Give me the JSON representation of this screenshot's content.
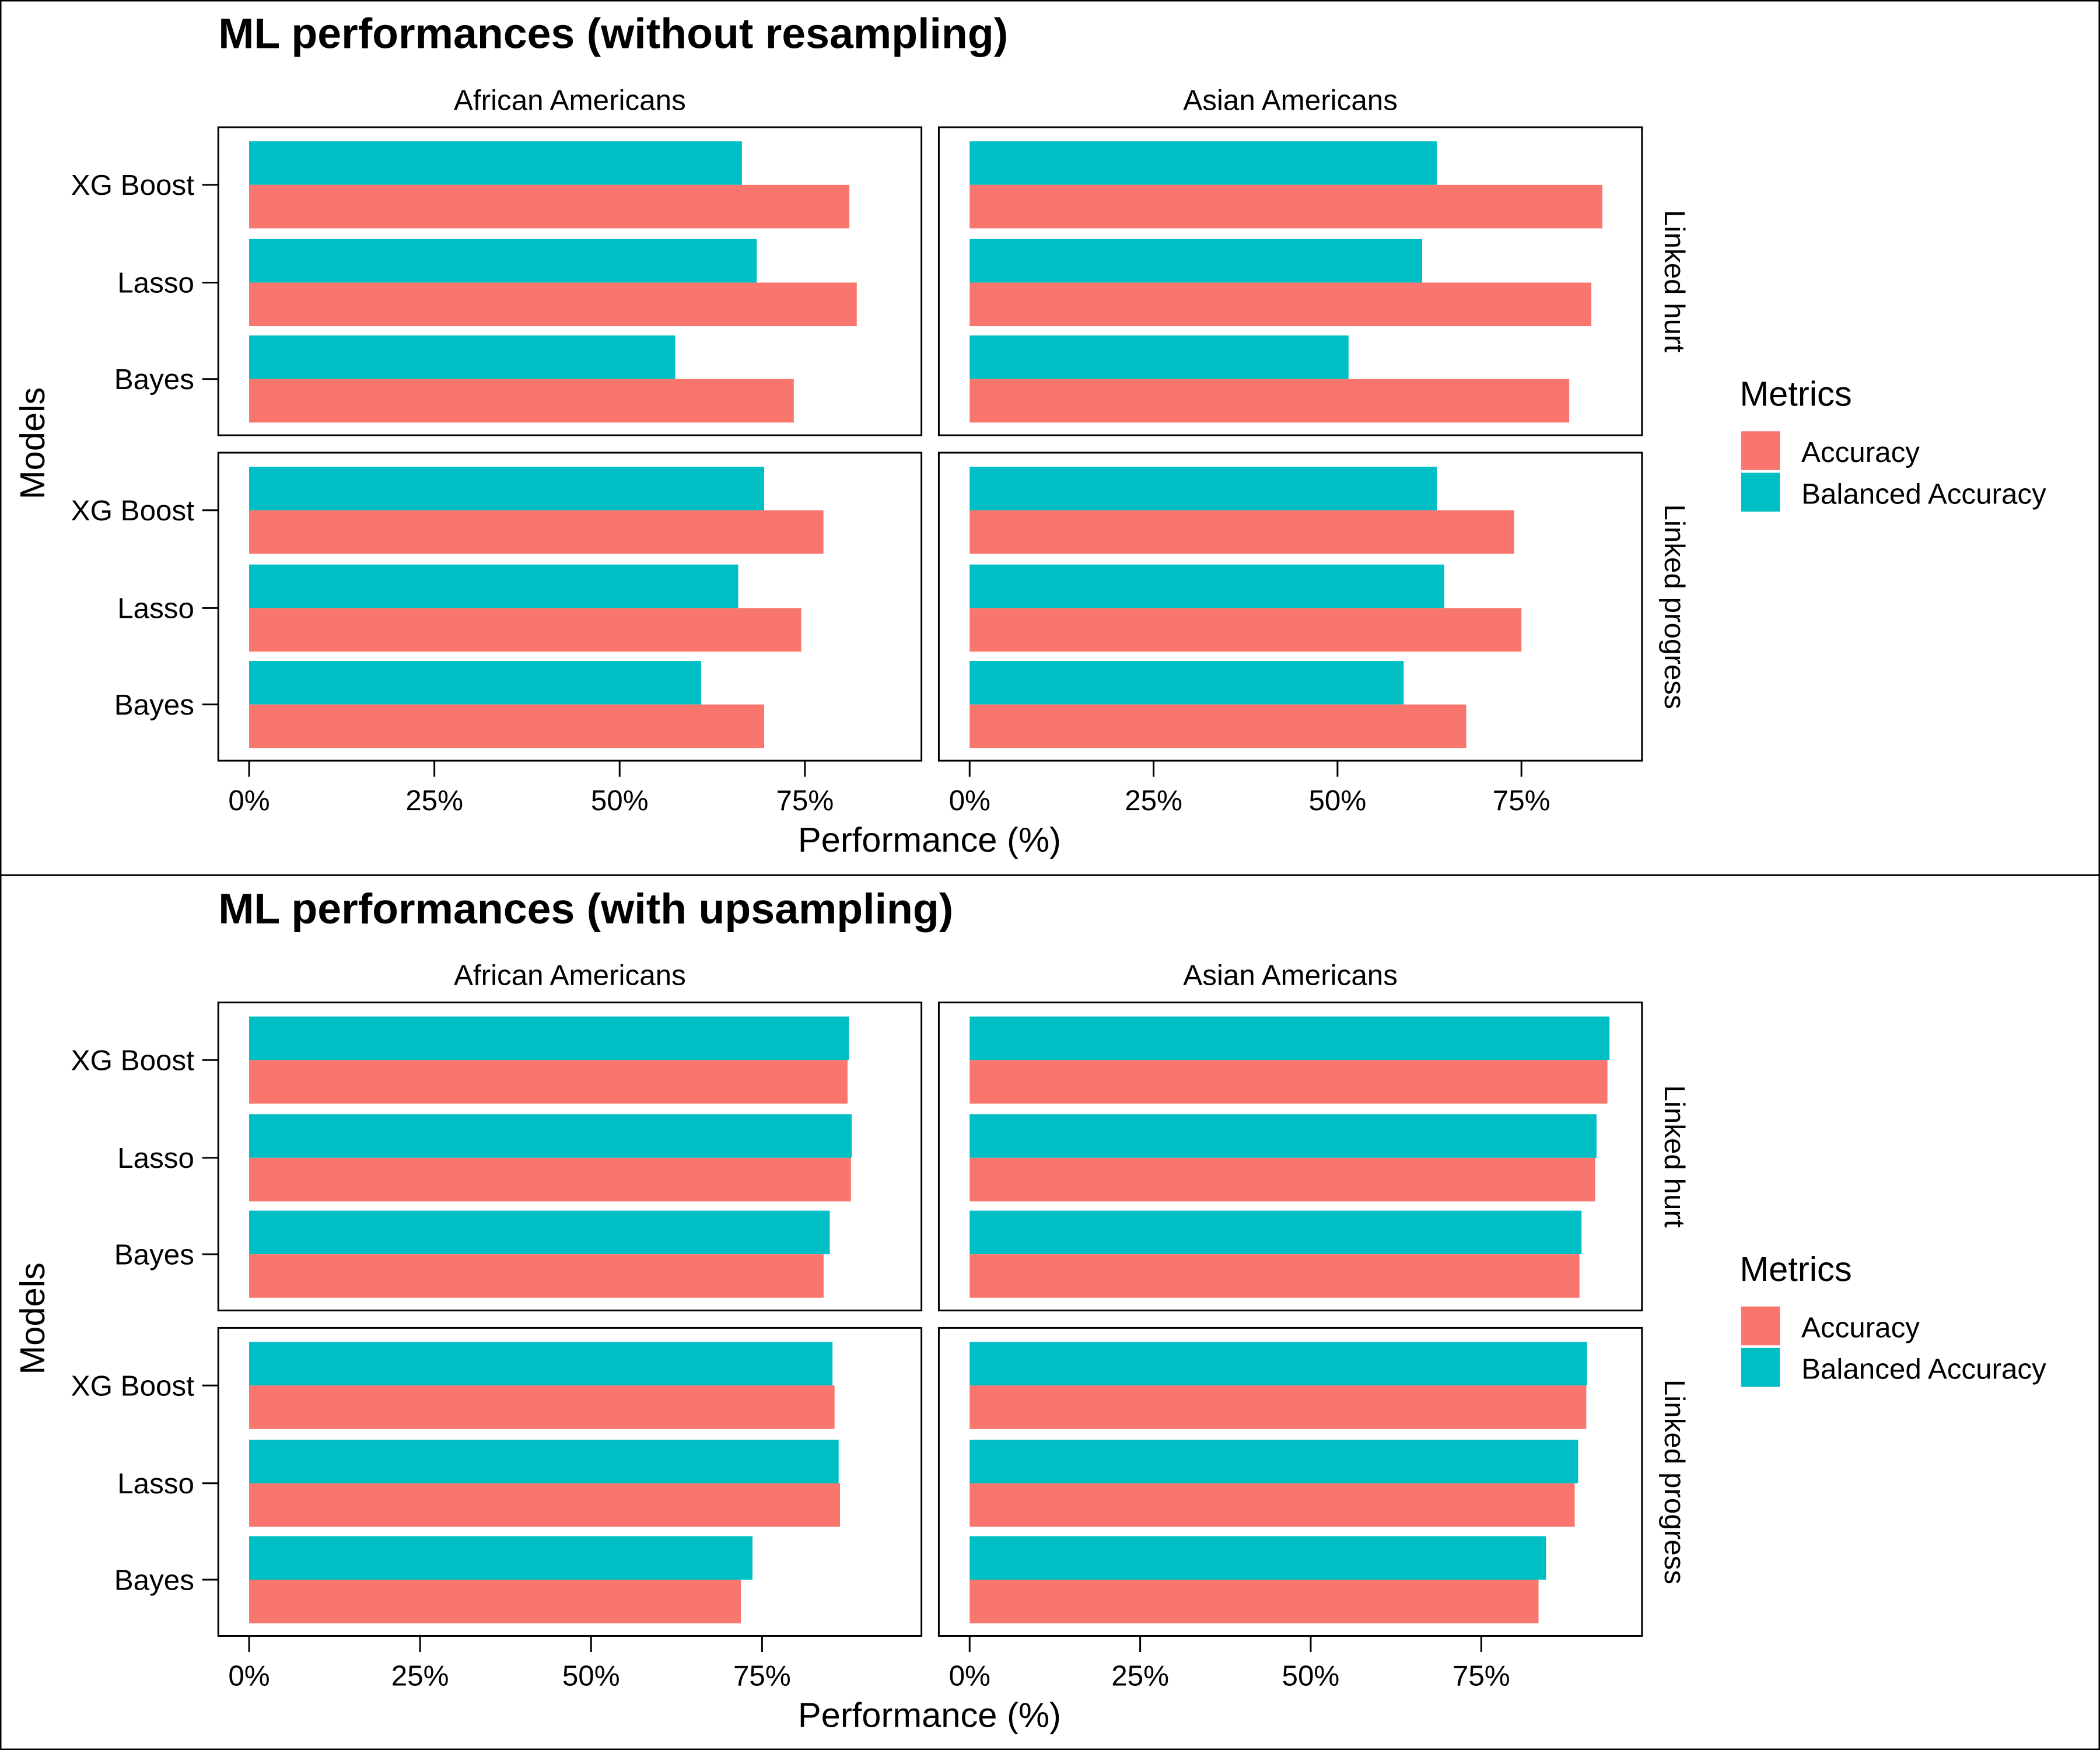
{
  "colors": {
    "accuracy": "#F8766D",
    "balanced": "#00BFC4",
    "frame": "#000000"
  },
  "chart_data": [
    {
      "type": "bar",
      "orientation": "horizontal",
      "title": "ML performances (without resampling)",
      "xlabel": "Performance (%)",
      "ylabel": "Models",
      "xlim": [
        0,
        0.9
      ],
      "x_ticks": [
        "0%",
        "25%",
        "50%",
        "75%"
      ],
      "x_tick_values": [
        0,
        0.25,
        0.5,
        0.75
      ],
      "facet_columns": [
        "African Americans",
        "Asian Americans"
      ],
      "facet_rows": [
        "Linked hurt",
        "Linked progress"
      ],
      "categories": [
        "XG Boost",
        "Lasso",
        "Bayes"
      ],
      "legend": {
        "title": "Metrics",
        "entries": [
          "Accuracy",
          "Balanced Accuracy"
        ],
        "placement": "right"
      },
      "grid": false,
      "panels": [
        {
          "row": "Linked hurt",
          "column": "African Americans",
          "series": [
            {
              "name": "Accuracy",
              "values": [
                0.81,
                0.82,
                0.735
              ]
            },
            {
              "name": "Balanced Accuracy",
              "values": [
                0.665,
                0.685,
                0.575
              ]
            }
          ]
        },
        {
          "row": "Linked hurt",
          "column": "Asian Americans",
          "series": [
            {
              "name": "Accuracy",
              "values": [
                0.86,
                0.845,
                0.815
              ]
            },
            {
              "name": "Balanced Accuracy",
              "values": [
                0.635,
                0.615,
                0.515
              ]
            }
          ]
        },
        {
          "row": "Linked progress",
          "column": "African Americans",
          "series": [
            {
              "name": "Accuracy",
              "values": [
                0.775,
                0.745,
                0.695
              ]
            },
            {
              "name": "Balanced Accuracy",
              "values": [
                0.695,
                0.66,
                0.61
              ]
            }
          ]
        },
        {
          "row": "Linked progress",
          "column": "Asian Americans",
          "series": [
            {
              "name": "Accuracy",
              "values": [
                0.74,
                0.75,
                0.675
              ]
            },
            {
              "name": "Balanced Accuracy",
              "values": [
                0.635,
                0.645,
                0.59
              ]
            }
          ]
        }
      ]
    },
    {
      "type": "bar",
      "orientation": "horizontal",
      "title": "ML performances (with upsampling)",
      "xlabel": "Performance (%)",
      "ylabel": "Models",
      "xlim": [
        0,
        0.99
      ],
      "x_ticks": [
        "0%",
        "25%",
        "50%",
        "75%"
      ],
      "x_tick_values": [
        0,
        0.25,
        0.5,
        0.75
      ],
      "facet_columns": [
        "African Americans",
        "Asian Americans"
      ],
      "facet_rows": [
        "Linked hurt",
        "Linked progress"
      ],
      "categories": [
        "XG Boost",
        "Lasso",
        "Bayes"
      ],
      "legend": {
        "title": "Metrics",
        "entries": [
          "Accuracy",
          "Balanced Accuracy"
        ],
        "placement": "right"
      },
      "grid": false,
      "panels": [
        {
          "row": "Linked hurt",
          "column": "African Americans",
          "series": [
            {
              "name": "Accuracy",
              "values": [
                0.875,
                0.88,
                0.84
              ]
            },
            {
              "name": "Balanced Accuracy",
              "values": [
                0.877,
                0.881,
                0.849
              ]
            }
          ]
        },
        {
          "row": "Linked hurt",
          "column": "Asian Americans",
          "series": [
            {
              "name": "Accuracy",
              "values": [
                0.935,
                0.917,
                0.894
              ]
            },
            {
              "name": "Balanced Accuracy",
              "values": [
                0.938,
                0.919,
                0.897
              ]
            }
          ]
        },
        {
          "row": "Linked progress",
          "column": "African Americans",
          "series": [
            {
              "name": "Accuracy",
              "values": [
                0.856,
                0.864,
                0.719
              ]
            },
            {
              "name": "Balanced Accuracy",
              "values": [
                0.853,
                0.862,
                0.736
              ]
            }
          ]
        },
        {
          "row": "Linked progress",
          "column": "Asian Americans",
          "series": [
            {
              "name": "Accuracy",
              "values": [
                0.904,
                0.887,
                0.834
              ]
            },
            {
              "name": "Balanced Accuracy",
              "values": [
                0.905,
                0.892,
                0.845
              ]
            }
          ]
        }
      ]
    }
  ]
}
